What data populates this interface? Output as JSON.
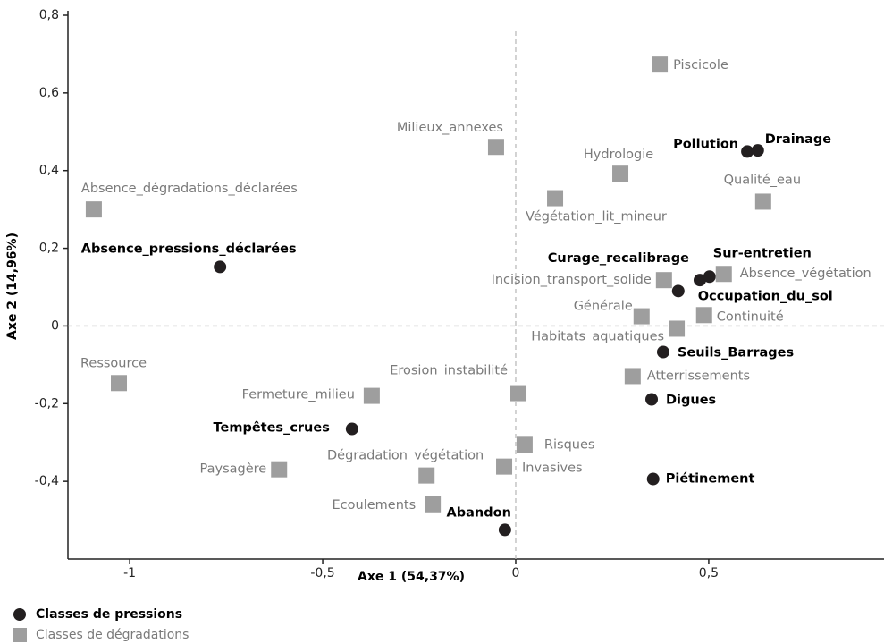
{
  "chart_data": {
    "type": "scatter",
    "x_label": "Axe 1 (54,37%)",
    "y_label": "Axe 2 (14,96%)",
    "xlim": [
      -1.16,
      0.954
    ],
    "ylim": [
      -0.6,
      0.8
    ],
    "xticks": [
      -1,
      {
        "value": -0.5,
        "label": "-0,5"
      },
      0,
      {
        "value": 0.5,
        "label": "0,5"
      }
    ],
    "yticks": [
      {
        "value": 0.8,
        "label": "0,8"
      },
      {
        "value": 0.6,
        "label": "0,6"
      },
      {
        "value": 0.4,
        "label": "0,4"
      },
      {
        "value": 0.2,
        "label": "0,2"
      },
      0,
      {
        "value": -0.2,
        "label": "-0,2"
      },
      {
        "value": -0.4,
        "label": "-0,4"
      }
    ],
    "reference_lines": true,
    "series": [
      {
        "name": "Classes de pressions",
        "color": "#231f20",
        "label_color": "#000000",
        "marker": "circle",
        "labels": [
          "Absence_pressions_déclarées",
          "Pollution",
          "Drainage",
          "Curage_recalibrage",
          "Sur-entretien",
          "Occupation_du_sol",
          "Seuils_Barrages",
          "Digues",
          "Tempêtes_crues",
          "Piétinement",
          "Abandon"
        ],
        "x": [
          -0.766,
          0.6,
          0.627,
          0.477,
          0.502,
          0.421,
          0.382,
          0.352,
          -0.424,
          0.356,
          -0.028
        ],
        "y": [
          0.152,
          0.449,
          0.452,
          0.118,
          0.127,
          0.09,
          -0.067,
          -0.189,
          -0.265,
          -0.394,
          -0.525
        ]
      },
      {
        "name": "Classes de dégradations",
        "color": "#9e9e9e",
        "label_color": "#7a7a7a",
        "marker": "square",
        "labels": [
          "Piscicole",
          "Milieux_annexes",
          "Hydrologie",
          "Qualité_eau",
          "Végétation_lit_mineur",
          "Absence_dégradations_déclarées",
          "Incision_transport_solide",
          "Absence_végétation",
          "Générale",
          "Continuité",
          "Habitats_aquatiques",
          "Atterrissements",
          "Ressource",
          "Erosion_instabilité",
          "Fermeture_milieu",
          "Risques",
          "Invasives",
          "Paysagère",
          "Dégradation_végétation",
          "Ecoulements"
        ],
        "x": [
          0.373,
          -0.051,
          0.271,
          0.641,
          0.102,
          -1.093,
          0.384,
          0.539,
          0.326,
          0.488,
          0.417,
          0.303,
          -1.028,
          0.007,
          -0.373,
          0.023,
          -0.03,
          -0.613,
          -0.231,
          -0.215
        ],
        "y": [
          0.673,
          0.461,
          0.392,
          0.32,
          0.329,
          0.3,
          0.118,
          0.134,
          0.025,
          0.028,
          -0.007,
          -0.129,
          -0.147,
          -0.173,
          -0.18,
          -0.306,
          -0.362,
          -0.369,
          -0.385,
          -0.459
        ]
      }
    ]
  }
}
